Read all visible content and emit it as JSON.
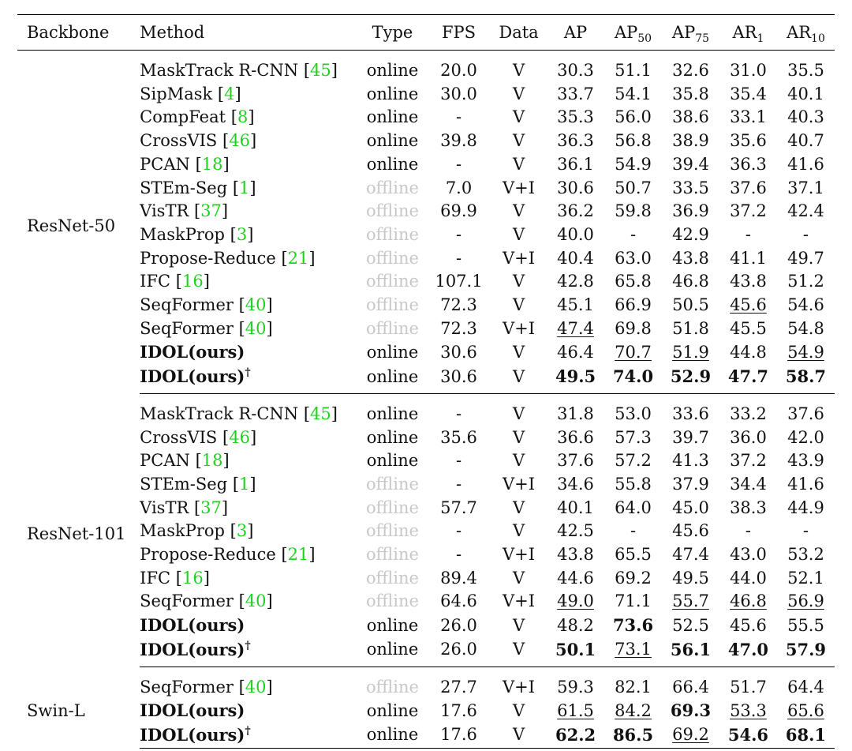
{
  "columns": [
    "Backbone",
    "Method",
    "Type",
    "FPS",
    "Data",
    "AP",
    "AP",
    "AP",
    "AR",
    "AR"
  ],
  "column_subscripts": [
    "",
    "",
    "",
    "",
    "",
    "",
    "50",
    "75",
    "1",
    "10"
  ],
  "groups": [
    {
      "backbone": "ResNet-50",
      "rows": [
        {
          "method": "MaskTrack R-CNN",
          "cite": "45",
          "type": "online",
          "fps": "20.0",
          "data": "V",
          "vals": [
            "30.3",
            "51.1",
            "32.6",
            "31.0",
            "35.5"
          ]
        },
        {
          "method": "SipMask",
          "cite": "4",
          "type": "online",
          "fps": "30.0",
          "data": "V",
          "vals": [
            "33.7",
            "54.1",
            "35.8",
            "35.4",
            "40.1"
          ]
        },
        {
          "method": "CompFeat",
          "cite": "8",
          "type": "online",
          "fps": "-",
          "data": "V",
          "vals": [
            "35.3",
            "56.0",
            "38.6",
            "33.1",
            "40.3"
          ]
        },
        {
          "method": "CrossVIS",
          "cite": "46",
          "type": "online",
          "fps": "39.8",
          "data": "V",
          "vals": [
            "36.3",
            "56.8",
            "38.9",
            "35.6",
            "40.7"
          ]
        },
        {
          "method": "PCAN",
          "cite": "18",
          "type": "online",
          "fps": "-",
          "data": "V",
          "vals": [
            "36.1",
            "54.9",
            "39.4",
            "36.3",
            "41.6"
          ]
        },
        {
          "method": "STEm-Seg",
          "cite": "1",
          "type": "offline",
          "fps": "7.0",
          "data": "V+I",
          "vals": [
            "30.6",
            "50.7",
            "33.5",
            "37.6",
            "37.1"
          ]
        },
        {
          "method": "VisTR",
          "cite": "37",
          "type": "offline",
          "fps": "69.9",
          "data": "V",
          "vals": [
            "36.2",
            "59.8",
            "36.9",
            "37.2",
            "42.4"
          ]
        },
        {
          "method": "MaskProp",
          "cite": "3",
          "type": "offline",
          "fps": "-",
          "data": "V",
          "vals": [
            "40.0",
            "-",
            "42.9",
            "-",
            "-"
          ]
        },
        {
          "method": "Propose-Reduce",
          "cite": "21",
          "type": "offline",
          "fps": "-",
          "data": "V+I",
          "vals": [
            "40.4",
            "63.0",
            "43.8",
            "41.1",
            "49.7"
          ]
        },
        {
          "method": "IFC",
          "cite": "16",
          "type": "offline",
          "fps": "107.1",
          "data": "V",
          "vals": [
            "42.8",
            "65.8",
            "46.8",
            "43.8",
            "51.2"
          ]
        },
        {
          "method": "SeqFormer",
          "cite": "40",
          "type": "offline",
          "fps": "72.3",
          "data": "V",
          "vals": [
            "45.1",
            "66.9",
            "50.5",
            "45.6",
            "54.6"
          ],
          "underline": [
            3
          ]
        },
        {
          "method": "SeqFormer",
          "cite": "40",
          "type": "offline",
          "fps": "72.3",
          "data": "V+I",
          "vals": [
            "47.4",
            "69.8",
            "51.8",
            "45.5",
            "54.8"
          ],
          "underline": [
            0
          ]
        },
        {
          "method": "IDOL(ours)",
          "bold": true,
          "type": "online",
          "fps": "30.6",
          "data": "V",
          "vals": [
            "46.4",
            "70.7",
            "51.9",
            "44.8",
            "54.9"
          ],
          "underline": [
            1,
            2,
            4
          ]
        },
        {
          "method": "IDOL(ours)",
          "dagger": "†",
          "bold": true,
          "type": "online",
          "fps": "30.6",
          "data": "V",
          "vals": [
            "49.5",
            "74.0",
            "52.9",
            "47.7",
            "58.7"
          ],
          "boldvals": [
            0,
            1,
            2,
            3,
            4
          ]
        }
      ]
    },
    {
      "backbone": "ResNet-101",
      "rows": [
        {
          "method": "MaskTrack R-CNN",
          "cite": "45",
          "type": "online",
          "fps": "-",
          "data": "V",
          "vals": [
            "31.8",
            "53.0",
            "33.6",
            "33.2",
            "37.6"
          ]
        },
        {
          "method": "CrossVIS",
          "cite": "46",
          "type": "online",
          "fps": "35.6",
          "data": "V",
          "vals": [
            "36.6",
            "57.3",
            "39.7",
            "36.0",
            "42.0"
          ]
        },
        {
          "method": "PCAN",
          "cite": "18",
          "type": "online",
          "fps": "-",
          "data": "V",
          "vals": [
            "37.6",
            "57.2",
            "41.3",
            "37.2",
            "43.9"
          ]
        },
        {
          "method": "STEm-Seg",
          "cite": "1",
          "type": "offline",
          "fps": "-",
          "data": "V+I",
          "vals": [
            "34.6",
            "55.8",
            "37.9",
            "34.4",
            "41.6"
          ]
        },
        {
          "method": "VisTR",
          "cite": "37",
          "type": "offline",
          "fps": "57.7",
          "data": "V",
          "vals": [
            "40.1",
            "64.0",
            "45.0",
            "38.3",
            "44.9"
          ]
        },
        {
          "method": "MaskProp",
          "cite": "3",
          "type": "offline",
          "fps": "-",
          "data": "V",
          "vals": [
            "42.5",
            "-",
            "45.6",
            "-",
            "-"
          ]
        },
        {
          "method": "Propose-Reduce",
          "cite": "21",
          "type": "offline",
          "fps": "-",
          "data": "V+I",
          "vals": [
            "43.8",
            "65.5",
            "47.4",
            "43.0",
            "53.2"
          ]
        },
        {
          "method": "IFC",
          "cite": "16",
          "type": "offline",
          "fps": "89.4",
          "data": "V",
          "vals": [
            "44.6",
            "69.2",
            "49.5",
            "44.0",
            "52.1"
          ]
        },
        {
          "method": "SeqFormer",
          "cite": "40",
          "type": "offline",
          "fps": "64.6",
          "data": "V+I",
          "vals": [
            "49.0",
            "71.1",
            "55.7",
            "46.8",
            "56.9"
          ],
          "underline": [
            0,
            2,
            3,
            4
          ]
        },
        {
          "method": "IDOL(ours)",
          "bold": true,
          "type": "online",
          "fps": "26.0",
          "data": "V",
          "vals": [
            "48.2",
            "73.6",
            "52.5",
            "45.6",
            "55.5"
          ],
          "boldvals": [
            1
          ]
        },
        {
          "method": "IDOL(ours)",
          "dagger": "†",
          "bold": true,
          "type": "online",
          "fps": "26.0",
          "data": "V",
          "vals": [
            "50.1",
            "73.1",
            "56.1",
            "47.0",
            "57.9"
          ],
          "boldvals": [
            0,
            2,
            3,
            4
          ],
          "underline": [
            1
          ]
        }
      ]
    },
    {
      "backbone": "Swin-L",
      "rows": [
        {
          "method": "SeqFormer",
          "cite": "40",
          "type": "offline",
          "fps": "27.7",
          "data": "V+I",
          "vals": [
            "59.3",
            "82.1",
            "66.4",
            "51.7",
            "64.4"
          ]
        },
        {
          "method": "IDOL(ours)",
          "bold": true,
          "type": "online",
          "fps": "17.6",
          "data": "V",
          "vals": [
            "61.5",
            "84.2",
            "69.3",
            "53.3",
            "65.6"
          ],
          "boldvals": [
            2
          ],
          "underline": [
            0,
            1,
            3,
            4
          ]
        },
        {
          "method": "IDOL(ours)",
          "dagger": "†",
          "bold": true,
          "type": "online",
          "fps": "17.6",
          "data": "V",
          "vals": [
            "62.2",
            "86.5",
            "69.2",
            "54.6",
            "68.1"
          ],
          "boldvals": [
            0,
            1,
            3,
            4
          ],
          "underline": [
            2
          ]
        }
      ]
    }
  ]
}
